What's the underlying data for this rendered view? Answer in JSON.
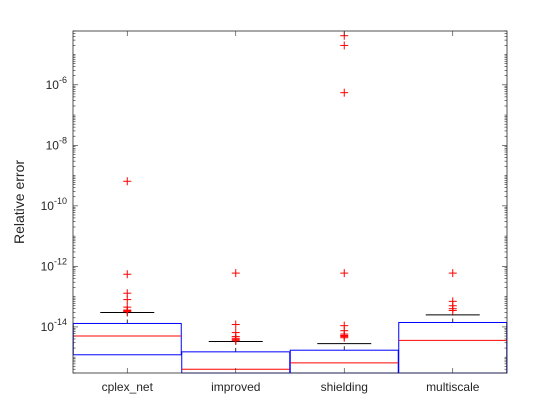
{
  "chart_data": {
    "type": "box",
    "title": "",
    "xlabel": "",
    "ylabel": "Relative error",
    "yscale": "log",
    "ylim": [
      3e-16,
      6e-05
    ],
    "grid": false,
    "legend": "none",
    "y_ticks": [
      {
        "value": 1e-14,
        "base": "10",
        "exp": "-14"
      },
      {
        "value": 1e-12,
        "base": "10",
        "exp": "-12"
      },
      {
        "value": 1e-10,
        "base": "10",
        "exp": "-10"
      },
      {
        "value": 1e-08,
        "base": "10",
        "exp": "-8"
      },
      {
        "value": 1e-06,
        "base": "10",
        "exp": "-6"
      }
    ],
    "categories": [
      "cplex_net",
      "improved",
      "shielding",
      "multiscale"
    ],
    "boxes": [
      {
        "q1": 1.2e-15,
        "median": 5e-15,
        "q3": 1.3e-14,
        "whisker_low": 1.2e-15,
        "whisker_high": 3e-14,
        "outliers": [
          3.2e-14,
          3.4e-14,
          3.6e-14,
          4.5e-14,
          8e-14,
          1.3e-13,
          5.5e-13,
          6.5e-10
        ]
      },
      {
        "q1": 3e-16,
        "median": 4e-16,
        "q3": 1.5e-15,
        "whisker_low": 3e-16,
        "whisker_high": 3.3e-15,
        "outliers": [
          3.5e-15,
          3.8e-15,
          4.2e-15,
          4.8e-15,
          6.5e-15,
          1.2e-14,
          6e-13
        ]
      },
      {
        "q1": 3e-16,
        "median": 6.5e-16,
        "q3": 1.7e-15,
        "whisker_low": 3e-16,
        "whisker_high": 2.8e-15,
        "outliers": [
          4.4e-15,
          4.8e-15,
          5.2e-15,
          5.8e-15,
          7.5e-15,
          1.1e-14,
          6e-13,
          5.5e-07,
          2e-05,
          4.2e-05
        ]
      },
      {
        "q1": 3e-16,
        "median": 3.6e-15,
        "q3": 1.4e-14,
        "whisker_low": 3e-16,
        "whisker_high": 2.5e-14,
        "outliers": [
          3.5e-14,
          4e-14,
          5e-14,
          7e-14,
          6e-13
        ]
      }
    ],
    "colors": {
      "box": "#0000ff",
      "median": "#ff0000",
      "whisker": "#000000",
      "outlier": "#ff0000",
      "axis": "#262626"
    }
  }
}
